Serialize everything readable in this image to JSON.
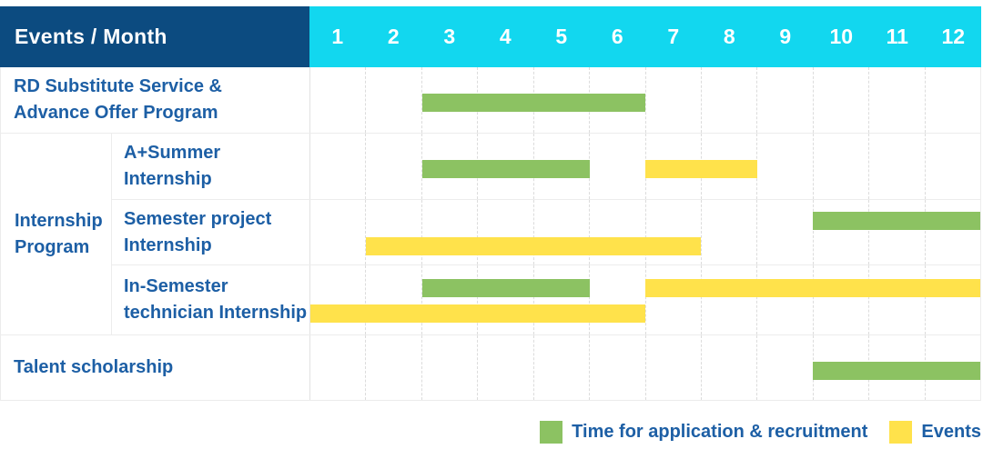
{
  "palette": {
    "navy": "#0c4b80",
    "cyan": "#12d7ef",
    "text_blue": "#1d5fa5",
    "green": "#8cc262",
    "yellow": "#ffe24b",
    "grid_dash": "#dcdcdc",
    "grid_solid": "#ececec"
  },
  "header": {
    "corner_label": "Events / Month"
  },
  "chart_data": {
    "type": "bar",
    "subtype": "gantt-schedule",
    "column_axis_label": "Events / Month",
    "columns": [
      "1",
      "2",
      "3",
      "4",
      "5",
      "6",
      "7",
      "8",
      "9",
      "10",
      "11",
      "12"
    ],
    "legend": [
      {
        "series": "application",
        "label": "Time for application & recruitment",
        "color_key": "green"
      },
      {
        "series": "events",
        "label": "Events",
        "color_key": "yellow"
      }
    ],
    "rows": [
      {
        "group": "",
        "label": "RD Substitute Service &\nAdvance Offer Program",
        "bars": [
          {
            "series": "application",
            "start_month": 3,
            "end_month": 6,
            "track": "center"
          }
        ]
      },
      {
        "group": "Internship\nProgram",
        "label": "A+Summer\nInternship",
        "bars": [
          {
            "series": "application",
            "start_month": 3,
            "end_month": 5,
            "track": "center"
          },
          {
            "series": "events",
            "start_month": 7,
            "end_month": 8,
            "track": "center"
          }
        ]
      },
      {
        "group": "Internship\nProgram",
        "label": "Semester project\nInternship",
        "bars": [
          {
            "series": "application",
            "start_month": 10,
            "end_month": 12,
            "track": "upper"
          },
          {
            "series": "events",
            "start_month": 2,
            "end_month": 7,
            "track": "lower"
          }
        ]
      },
      {
        "group": "Internship\nProgram",
        "label": "In-Semester\ntechnician Internship",
        "bars": [
          {
            "series": "application",
            "start_month": 3,
            "end_month": 5,
            "track": "upper"
          },
          {
            "series": "events",
            "start_month": 7,
            "end_month": 12,
            "track": "upper"
          },
          {
            "series": "events",
            "start_month": 1,
            "end_month": 6,
            "track": "lower"
          }
        ]
      },
      {
        "group": "",
        "label": "Talent scholarship",
        "bars": [
          {
            "series": "application",
            "start_month": 10,
            "end_month": 12,
            "track": "center"
          }
        ]
      }
    ]
  }
}
